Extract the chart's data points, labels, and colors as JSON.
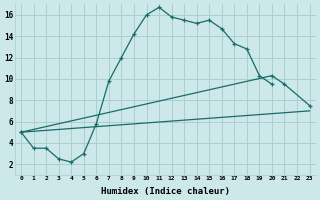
{
  "xlabel": "Humidex (Indice chaleur)",
  "ylabel": "",
  "background_color": "#cce8e8",
  "grid_color": "#aacece",
  "line_color": "#1a6b6b",
  "xlim": [
    -0.5,
    23.5
  ],
  "ylim": [
    1,
    17
  ],
  "xtick_labels": [
    "0",
    "1",
    "2",
    "3",
    "4",
    "5",
    "6",
    "7",
    "8",
    "9",
    "10",
    "11",
    "12",
    "13",
    "14",
    "15",
    "16",
    "17",
    "18",
    "19",
    "20",
    "21",
    "22",
    "23"
  ],
  "ytick_values": [
    2,
    4,
    6,
    8,
    10,
    12,
    14,
    16
  ],
  "curve": {
    "x": [
      0,
      1,
      2,
      3,
      4,
      5,
      6,
      7,
      8,
      9,
      10,
      11,
      12,
      13,
      14,
      15,
      16,
      17,
      18,
      19,
      20
    ],
    "y": [
      5,
      3.5,
      3.5,
      2.5,
      2.2,
      3.0,
      5.8,
      9.8,
      12.0,
      14.2,
      16.0,
      16.7,
      15.8,
      15.5,
      15.2,
      15.5,
      14.7,
      13.3,
      12.8,
      10.3,
      9.5
    ]
  },
  "diag_lower": {
    "x": [
      0,
      23
    ],
    "y": [
      5,
      7.0
    ]
  },
  "diag_upper": {
    "x": [
      0,
      20,
      21,
      23
    ],
    "y": [
      5,
      10.3,
      9.5,
      7.5
    ]
  }
}
